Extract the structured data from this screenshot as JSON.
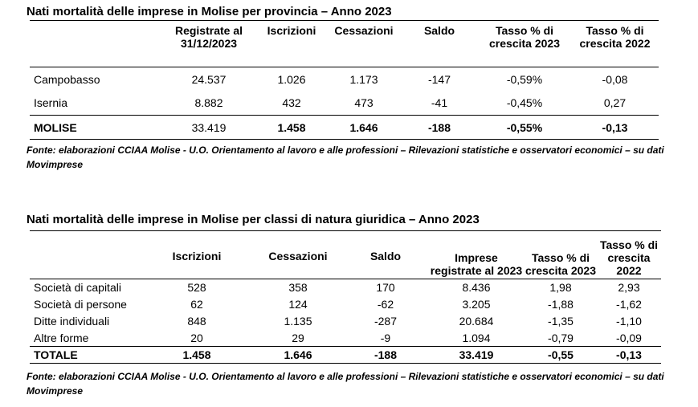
{
  "table1": {
    "title": "Nati mortalità delle imprese in Molise per provincia – Anno 2023",
    "headers": [
      "",
      "Registrate al 31/12/2023",
      "Iscrizioni",
      "Cessazioni",
      "Saldo",
      "Tasso % di crescita 2023",
      "Tasso % di crescita 2022"
    ],
    "rows": [
      [
        "Campobasso",
        "24.537",
        "1.026",
        "1.173",
        "-147",
        "-0,59%",
        "-0,08"
      ],
      [
        "Isernia",
        "8.882",
        "432",
        "473",
        "-41",
        "-0,45%",
        "0,27"
      ]
    ],
    "total": [
      "MOLISE",
      "33.419",
      "1.458",
      "1.646",
      "-188",
      "-0,55%",
      "-0,13"
    ],
    "source": "Fonte: elaborazioni CCIAA Molise - U.O. Orientamento al lavoro e alle professioni – Rilevazioni statistiche e osservatori economici – su dati Movimprese"
  },
  "table2": {
    "title": "Nati mortalità delle imprese in Molise per classi di natura giuridica – Anno 2023",
    "headers": [
      "",
      "Iscrizioni",
      "Cessazioni",
      "Saldo",
      "Imprese registrate al 2023",
      "Tasso % di crescita 2023",
      "Tasso % di crescita 2022"
    ],
    "rows": [
      [
        "Società di capitali",
        "528",
        "358",
        "170",
        "8.436",
        "1,98",
        "2,93"
      ],
      [
        "Società di persone",
        "62",
        "124",
        "-62",
        "3.205",
        "-1,88",
        "-1,62"
      ],
      [
        "Ditte individuali",
        "848",
        "1.135",
        "-287",
        "20.684",
        "-1,35",
        "-1,10"
      ],
      [
        "Altre forme",
        "20",
        "29",
        "-9",
        "1.094",
        "-0,79",
        "-0,09"
      ]
    ],
    "total": [
      "TOTALE",
      "1.458",
      "1.646",
      "-188",
      "33.419",
      "-0,55",
      "-0,13"
    ],
    "source": "Fonte: elaborazioni CCIAA Molise - U.O. Orientamento al lavoro e alle professioni – Rilevazioni statistiche e osservatori economici – su dati Movimprese"
  }
}
